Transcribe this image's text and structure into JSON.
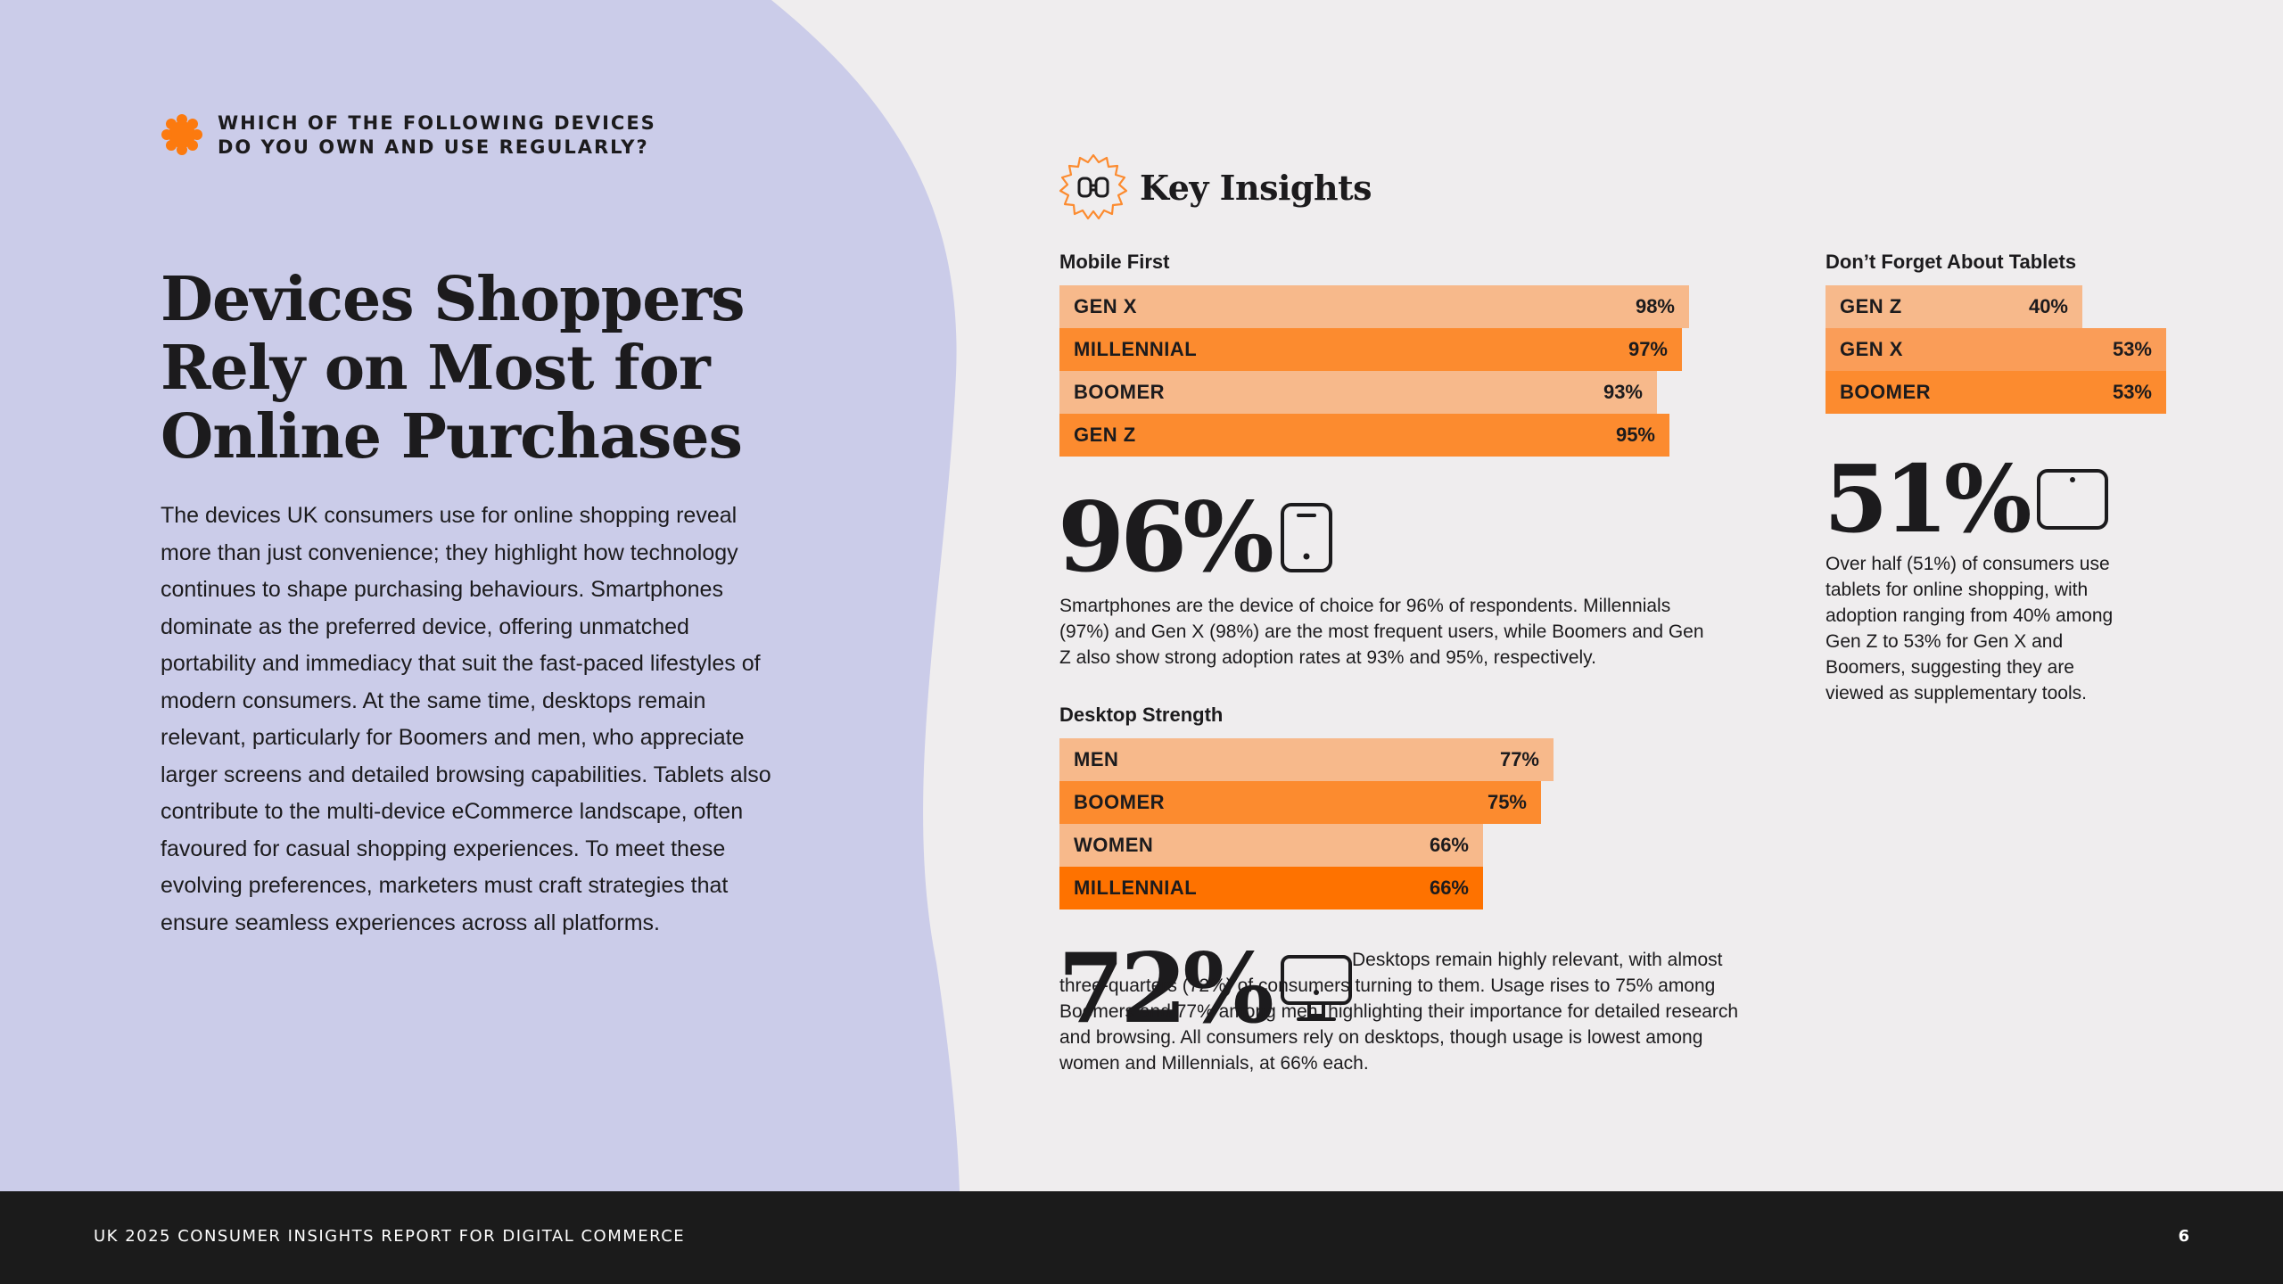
{
  "eyebrow": {
    "line1": "WHICH OF THE FOLLOWING DEVICES",
    "line2": "DO YOU OWN AND USE REGULARLY?",
    "icon": "orange-burst-icon"
  },
  "title": {
    "line1": "Devices Shoppers",
    "line2": "Rely on Most for",
    "line3": "Online Purchases"
  },
  "intro": "The devices UK consumers use for online shopping reveal more than just convenience; they highlight how technology continues to shape purchasing behaviours. Smartphones dominate as the preferred device, offering unmatched portability and immediacy that suit the fast-paced lifestyles of modern consumers. At the same time, desktops remain relevant, particularly for Boomers and men, who appreciate larger screens and detailed browsing capabilities. Tablets also contribute to the multi-device eCommerce landscape, often favoured for casual shopping experiences. To meet these evolving preferences, marketers must craft strategies that ensure seamless experiences across all platforms.",
  "key_insights": {
    "title": "Key Insights",
    "icon": "binoculars-badge-icon"
  },
  "mobile": {
    "label": "Mobile First",
    "bars": [
      {
        "label": "GEN X",
        "value": "98%",
        "pct": 98,
        "color": "#f7b98b"
      },
      {
        "label": "MILLENNIAL",
        "value": "97%",
        "pct": 97,
        "color": "#fc8b2f"
      },
      {
        "label": "BOOMER",
        "value": "93%",
        "pct": 93,
        "color": "#f7b98b"
      },
      {
        "label": "GEN Z",
        "value": "95%",
        "pct": 95,
        "color": "#fc8b2f"
      }
    ],
    "stat": "96%",
    "icon": "smartphone-icon",
    "desc": "Smartphones are the device of choice for 96% of respondents. Millennials (97%) and Gen X (98%) are the most frequent users, while Boomers and Gen Z also show strong adoption rates at 93% and 95%, respectively."
  },
  "desktop": {
    "label": "Desktop Strength",
    "bars": [
      {
        "label": "MEN",
        "value": "77%",
        "pct": 77,
        "color": "#f7b98b"
      },
      {
        "label": "BOOMER",
        "value": "75%",
        "pct": 75,
        "color": "#fc8b2f"
      },
      {
        "label": "WOMEN",
        "value": "66%",
        "pct": 66,
        "color": "#f7b98b"
      },
      {
        "label": "MILLENNIAL",
        "value": "66%",
        "pct": 66,
        "color": "#fe7200"
      }
    ],
    "stat": "72%",
    "icon": "desktop-monitor-icon",
    "desc": "Desktops remain highly relevant, with almost three-quarters (72%) of consumers turning to them. Usage rises to 75% among Boomers and 77% among men, highlighting their importance for detailed research and browsing. All consumers rely on desktops, though usage is lowest among women and Millennials, at 66% each."
  },
  "tablet": {
    "label": "Don’t Forget About Tablets",
    "bars": [
      {
        "label": "GEN Z",
        "value": "40%",
        "pct": 40,
        "color": "#f7b98b"
      },
      {
        "label": "GEN X",
        "value": "53%",
        "pct": 53,
        "color": "#fa9d58"
      },
      {
        "label": "BOOMER",
        "value": "53%",
        "pct": 53,
        "color": "#fc8b2f"
      }
    ],
    "stat": "51%",
    "icon": "tablet-icon",
    "desc": "Over half (51%) of consumers use tablets for online shopping, with adoption ranging from 40% among Gen Z to 53% for Gen X and Boomers, suggesting they are viewed as supplementary tools."
  },
  "footer": {
    "title": "UK 2025 CONSUMER INSIGHTS REPORT FOR DIGITAL COMMERCE",
    "page": "6"
  },
  "colors": {
    "left_panel": "#cbcce9",
    "background": "#efedee",
    "accent_orange": "#fc8b2f",
    "light_orange": "#f7b98b",
    "footer": "#1b1b1b"
  }
}
